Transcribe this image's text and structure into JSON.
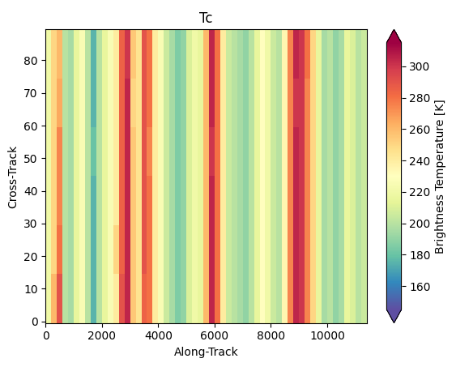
{
  "chart_data": {
    "type": "heatmap",
    "title": "Tc",
    "x_label": "Along-Track",
    "y_label": "Cross-Track",
    "xlim": [
      0,
      11400
    ],
    "xticks": [
      0,
      2000,
      4000,
      6000,
      8000,
      10000
    ],
    "ylim": [
      -0.5,
      89.5
    ],
    "yticks": [
      0,
      10,
      20,
      30,
      40,
      50,
      60,
      70,
      80
    ],
    "x_edges": [
      0,
      200,
      400,
      600,
      800,
      1000,
      1200,
      1400,
      1600,
      1800,
      2000,
      2200,
      2400,
      2600,
      2800,
      3000,
      3200,
      3400,
      3600,
      3800,
      4000,
      4200,
      4400,
      4600,
      4800,
      5000,
      5200,
      5400,
      5600,
      5800,
      6000,
      6200,
      6400,
      6600,
      6800,
      7000,
      7200,
      7400,
      7600,
      7800,
      8000,
      8200,
      8400,
      8600,
      8800,
      9000,
      9200,
      9400,
      9600,
      9800,
      10000,
      10200,
      10400,
      10600,
      10800,
      11000,
      11200,
      11400
    ],
    "y_edges": [
      -0.5,
      14.5,
      29.5,
      44.5,
      59.5,
      74.5,
      89.5
    ],
    "cells": [
      [
        220,
        260,
        290,
        200,
        195,
        215,
        225,
        200,
        175,
        200,
        215,
        225,
        240,
        290,
        305,
        255,
        245,
        285,
        280,
        240,
        225,
        205,
        195,
        185,
        190,
        210,
        220,
        215,
        260,
        305,
        280,
        240,
        205,
        200,
        195,
        190,
        200,
        215,
        230,
        220,
        205,
        200,
        235,
        275,
        305,
        300,
        275,
        250,
        215,
        195,
        200,
        190,
        195,
        215,
        210,
        200,
        205
      ],
      [
        220,
        250,
        280,
        200,
        195,
        215,
        225,
        200,
        175,
        200,
        215,
        225,
        250,
        285,
        305,
        255,
        245,
        290,
        280,
        240,
        225,
        205,
        195,
        185,
        190,
        210,
        220,
        215,
        260,
        305,
        280,
        240,
        205,
        200,
        195,
        190,
        200,
        215,
        230,
        220,
        205,
        200,
        235,
        275,
        305,
        300,
        275,
        250,
        215,
        195,
        200,
        190,
        195,
        215,
        210,
        200,
        205
      ],
      [
        220,
        250,
        275,
        200,
        195,
        215,
        225,
        200,
        175,
        200,
        215,
        225,
        240,
        285,
        305,
        255,
        245,
        290,
        280,
        240,
        225,
        205,
        195,
        185,
        190,
        210,
        220,
        215,
        260,
        305,
        280,
        240,
        205,
        200,
        195,
        190,
        200,
        215,
        230,
        220,
        205,
        200,
        235,
        275,
        305,
        300,
        275,
        250,
        215,
        195,
        200,
        190,
        195,
        215,
        210,
        200,
        205
      ],
      [
        220,
        250,
        275,
        200,
        195,
        215,
        225,
        200,
        180,
        200,
        215,
        225,
        240,
        285,
        305,
        255,
        245,
        290,
        275,
        240,
        225,
        205,
        195,
        185,
        190,
        210,
        220,
        215,
        260,
        300,
        280,
        240,
        205,
        200,
        195,
        190,
        200,
        215,
        230,
        220,
        205,
        200,
        235,
        275,
        305,
        300,
        275,
        250,
        215,
        195,
        200,
        190,
        195,
        215,
        210,
        200,
        205
      ],
      [
        220,
        250,
        265,
        200,
        195,
        215,
        225,
        200,
        175,
        200,
        215,
        225,
        240,
        285,
        305,
        250,
        245,
        290,
        280,
        240,
        225,
        205,
        195,
        185,
        190,
        210,
        220,
        215,
        260,
        305,
        280,
        240,
        205,
        200,
        195,
        190,
        200,
        215,
        230,
        220,
        205,
        200,
        235,
        275,
        300,
        300,
        275,
        250,
        215,
        195,
        200,
        190,
        195,
        215,
        210,
        200,
        205
      ],
      [
        220,
        250,
        260,
        200,
        195,
        215,
        225,
        200,
        175,
        200,
        215,
        225,
        240,
        285,
        300,
        255,
        245,
        290,
        280,
        240,
        225,
        205,
        195,
        185,
        190,
        210,
        220,
        215,
        260,
        305,
        280,
        240,
        205,
        200,
        195,
        190,
        200,
        215,
        230,
        220,
        205,
        200,
        235,
        275,
        305,
        300,
        280,
        250,
        215,
        195,
        200,
        190,
        195,
        215,
        210,
        200,
        205
      ]
    ],
    "colorbar": {
      "label": "Brightness Temperature [K]",
      "lim": [
        145,
        315
      ],
      "ticks": [
        160,
        180,
        200,
        220,
        240,
        260,
        280,
        300
      ]
    }
  }
}
